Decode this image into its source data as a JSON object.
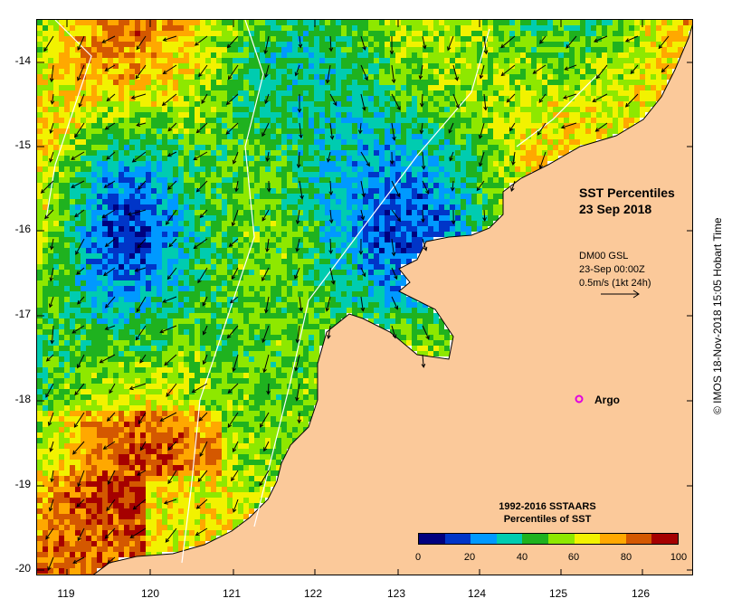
{
  "map": {
    "lon_range": [
      118.6,
      126.7
    ],
    "lat_range": [
      -20.1,
      -13.6
    ],
    "lat_ticks": [
      "-14",
      "-15",
      "-16",
      "-17",
      "-18",
      "-19",
      "-20"
    ],
    "lon_ticks": [
      "119",
      "120",
      "121",
      "122",
      "123",
      "124",
      "125",
      "126"
    ],
    "land_color": "#fbc99a"
  },
  "annotations": {
    "title_line1": "SST Percentiles",
    "title_line2": "23 Sep 2018",
    "vector_line1": "DM00 GSL",
    "vector_line2": "23-Sep 00:00Z",
    "vector_line3": "0.5m/s (1kt 24h)",
    "argo_label": "Argo",
    "argo_color": "#e000e0"
  },
  "colorbar": {
    "title_line1": "1992-2016 SSTAARS",
    "title_line2": "Percentiles of SST",
    "tick_labels": [
      "0",
      "20",
      "40",
      "60",
      "80",
      "100"
    ],
    "colors": [
      "#00007f",
      "#0035c8",
      "#0099ff",
      "#00ccb0",
      "#1fb21f",
      "#8ee800",
      "#f2f200",
      "#ffa800",
      "#d45800",
      "#a50000"
    ]
  },
  "credit": "© IMOS 18-Nov-2018 15:05 Hobart Time"
}
